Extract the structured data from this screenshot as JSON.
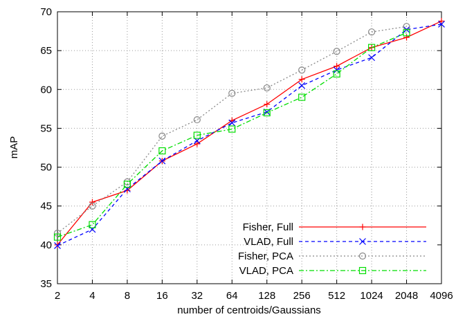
{
  "chart_data": {
    "type": "line",
    "title": "",
    "xlabel": "number of centroids/Gaussians",
    "ylabel": "mAP",
    "categories": [
      "2",
      "4",
      "8",
      "16",
      "32",
      "64",
      "128",
      "256",
      "512",
      "1024",
      "2048",
      "4096"
    ],
    "x_scale": "log2",
    "ylim": [
      35,
      70
    ],
    "yticks": [
      35,
      40,
      45,
      50,
      55,
      60,
      65,
      70
    ],
    "grid": "dotted",
    "legend_position": "bottom-right",
    "series": [
      {
        "name": "Fisher, Full",
        "color": "#ff0000",
        "marker": "plus",
        "dash": "solid",
        "values": [
          40.0,
          45.5,
          47.0,
          50.8,
          53.0,
          56.0,
          58.1,
          61.3,
          63.0,
          65.4,
          66.7,
          68.8
        ]
      },
      {
        "name": "VLAD, Full",
        "color": "#0000ff",
        "marker": "cross",
        "dash": "dashed",
        "values": [
          39.9,
          42.0,
          47.2,
          50.8,
          53.4,
          55.7,
          57.1,
          60.5,
          62.5,
          64.1,
          67.7,
          68.4
        ]
      },
      {
        "name": "Fisher, PCA",
        "color": "#888888",
        "marker": "circle",
        "dash": "dotted",
        "values": [
          41.5,
          45.0,
          48.1,
          54.0,
          56.1,
          59.5,
          60.2,
          62.5,
          64.9,
          67.4,
          68.1,
          null
        ]
      },
      {
        "name": "VLAD, PCA",
        "color": "#00dd00",
        "marker": "square",
        "dash": "dashdot",
        "values": [
          41.0,
          42.6,
          47.8,
          52.1,
          54.1,
          54.9,
          57.0,
          59.0,
          62.0,
          65.4,
          67.3,
          null
        ]
      }
    ]
  }
}
